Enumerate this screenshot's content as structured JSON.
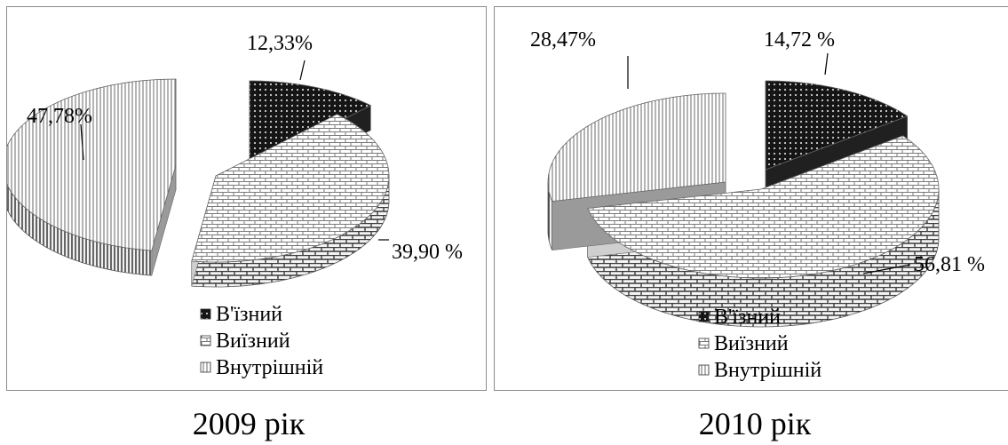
{
  "chart_data": [
    {
      "type": "pie",
      "title": "",
      "caption": "2009 рік",
      "slices": [
        {
          "name": "В'їзний",
          "value": 12.33,
          "label": "12,33%",
          "pattern": "dots"
        },
        {
          "name": "Виїзний",
          "value": 39.9,
          "label": "39,90 %",
          "pattern": "brick"
        },
        {
          "name": "Внутрішній",
          "value": 47.78,
          "label": "47,78%",
          "pattern": "vlines"
        }
      ],
      "legend": [
        "В'їзний",
        "Виїзний",
        "Внутрішній"
      ],
      "legend_position": "bottom",
      "three_d": true
    },
    {
      "type": "pie",
      "title": "",
      "caption": "2010 рік",
      "slices": [
        {
          "name": "В'їзний",
          "value": 14.72,
          "label": "14,72 %",
          "pattern": "dots"
        },
        {
          "name": "Виїзний",
          "value": 56.81,
          "label": "56,81 %",
          "pattern": "brick"
        },
        {
          "name": "Внутрішній",
          "value": 28.47,
          "label": "28,47%",
          "pattern": "vlines"
        }
      ],
      "legend": [
        "В'їзний",
        "Виїзний",
        "Внутрішній"
      ],
      "legend_position": "bottom",
      "three_d": true
    }
  ],
  "colors": {
    "dark": "#1a1a1a",
    "mid": "#9a9a9a",
    "light": "#ffffff",
    "border": "#8a8a8a"
  }
}
